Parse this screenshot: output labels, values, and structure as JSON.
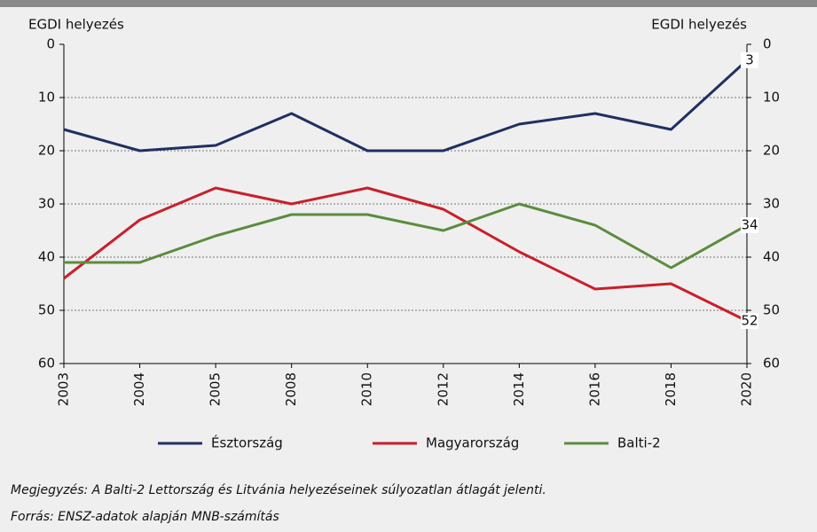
{
  "chart_data": {
    "type": "line",
    "y_label": "EGDI helyezés",
    "y2_label": "EGDI helyezés",
    "categories": [
      "2003",
      "2004",
      "2005",
      "2008",
      "2010",
      "2012",
      "2014",
      "2016",
      "2018",
      "2020"
    ],
    "series": [
      {
        "name": "Észtország",
        "color": "#1f3061",
        "values": [
          16,
          20,
          19,
          13,
          20,
          20,
          15,
          13,
          16,
          3
        ]
      },
      {
        "name": "Magyarország",
        "color": "#c8202b",
        "values": [
          44,
          33,
          27,
          30,
          27,
          31,
          39,
          46,
          45,
          52
        ]
      },
      {
        "name": "Balti-2",
        "color": "#5b8c3e",
        "values": [
          41,
          41,
          36,
          32,
          32,
          35,
          30,
          34,
          42,
          34
        ]
      }
    ],
    "ylim": [
      0,
      60
    ],
    "yticks": [
      0,
      10,
      20,
      30,
      40,
      50,
      60
    ],
    "y2lim": [
      0,
      60
    ],
    "y2ticks": [
      0,
      10,
      20,
      30,
      40,
      50,
      60
    ],
    "inverted_y": true,
    "grid": true,
    "legend": "bottom",
    "end_labels": true
  },
  "footer": {
    "note": "Megjegyzés: A Balti-2 Lettország és Litvánia helyezéseinek súlyozatlan átlagát jelenti.",
    "source": "Forrás: ENSZ-adatok alapján MNB-számítás"
  }
}
